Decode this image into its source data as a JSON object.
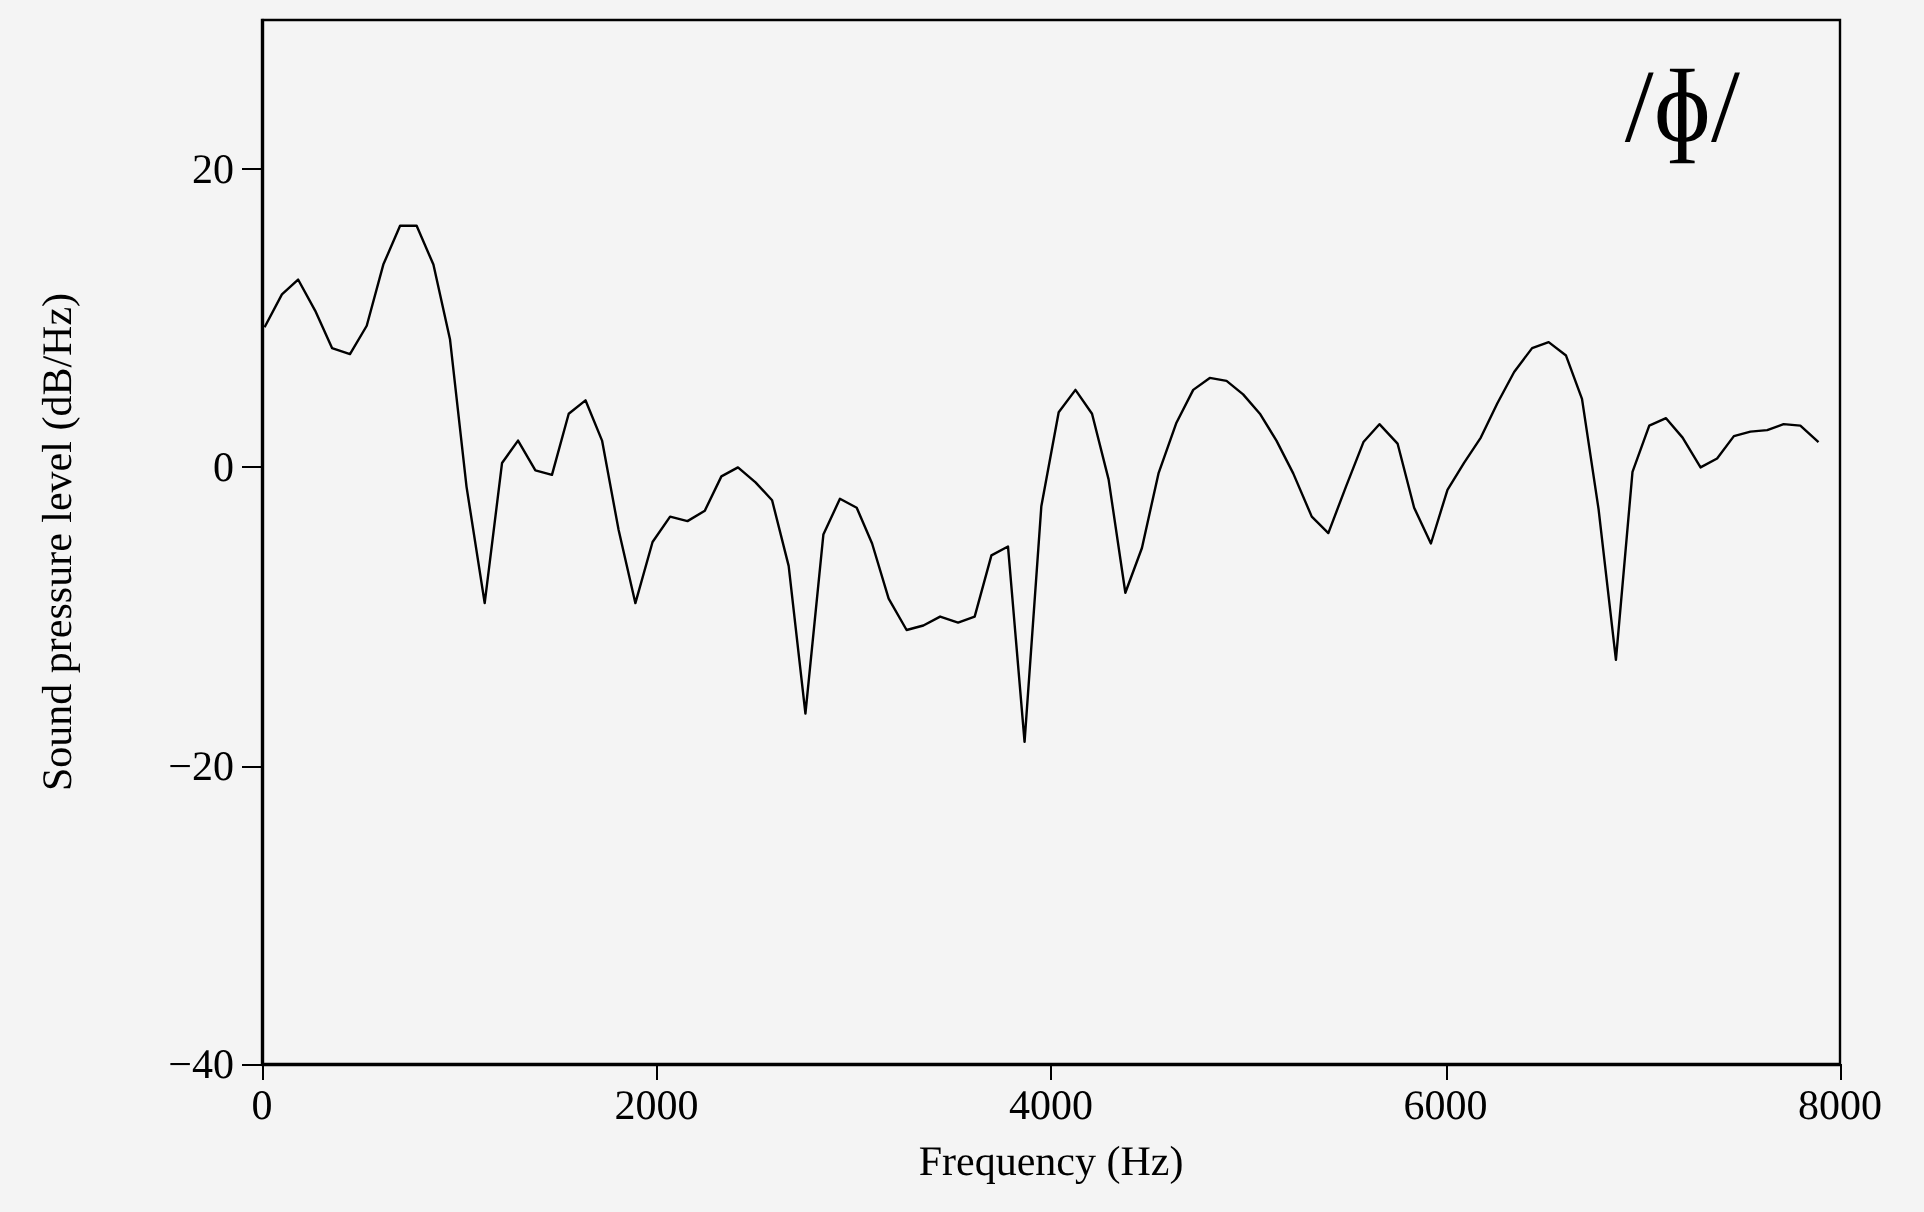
{
  "chart_data": {
    "type": "line",
    "xlabel": "Frequency (Hz)",
    "ylabel": "Sound pressure level (dB/Hz)",
    "annotations": [
      "/ɸ/"
    ],
    "x": [
      13,
      101,
      183,
      270,
      355,
      446,
      531,
      615,
      700,
      784,
      869,
      953,
      1037,
      1129,
      1217,
      1298,
      1386,
      1470,
      1555,
      1640,
      1724,
      1808,
      1893,
      1980,
      2069,
      2157,
      2245,
      2329,
      2413,
      2502,
      2586,
      2670,
      2755,
      2846,
      2930,
      3015,
      3093,
      3177,
      3268,
      3353,
      3438,
      3529,
      3613,
      3698,
      3782,
      3866,
      3951,
      4039,
      4124,
      4208,
      4292,
      4377,
      4461,
      4545,
      4636,
      4721,
      4805,
      4890,
      4974,
      5059,
      5143,
      5228,
      5322,
      5406,
      5495,
      5584,
      5665,
      5757,
      5841,
      5926,
      6010,
      6094,
      6179,
      6263,
      6348,
      6439,
      6523,
      6611,
      6692,
      6776,
      6864,
      6948,
      7033,
      7118,
      7202,
      7293,
      7377,
      7462,
      7546,
      7631,
      7714,
      7799,
      7891
    ],
    "series": [
      {
        "color": "#000000",
        "values": [
          9.4,
          11.6,
          12.6,
          10.5,
          8.0,
          7.6,
          9.5,
          13.6,
          16.2,
          16.2,
          13.6,
          8.6,
          -1.3,
          -9.1,
          0.3,
          1.8,
          -0.2,
          -0.5,
          3.6,
          4.5,
          1.8,
          -4.2,
          -9.1,
          -5.0,
          -3.3,
          -3.6,
          -2.9,
          -0.6,
          0.0,
          -1.0,
          -2.2,
          -6.6,
          -16.5,
          -4.5,
          -2.1,
          -2.7,
          -5.1,
          -8.8,
          -10.9,
          -10.6,
          -10.0,
          -10.4,
          -10.0,
          -5.9,
          -5.3,
          -18.4,
          -2.6,
          3.7,
          5.2,
          3.6,
          -0.8,
          -8.4,
          -5.4,
          -0.4,
          3.0,
          5.2,
          6.0,
          5.8,
          4.9,
          3.6,
          1.8,
          -0.4,
          -3.3,
          -4.4,
          -1.3,
          1.7,
          2.9,
          1.6,
          -2.7,
          -5.1,
          -1.5,
          0.3,
          2.0,
          4.3,
          6.4,
          8.0,
          8.4,
          7.5,
          4.6,
          -2.8,
          -12.9,
          -0.3,
          2.8,
          3.3,
          2.0,
          0.0,
          0.6,
          2.1,
          2.4,
          2.5,
          2.9,
          2.8,
          1.7
        ]
      }
    ],
    "xlim": [
      0,
      8000
    ],
    "xticks": [
      0,
      2000,
      4000,
      6000,
      8000
    ],
    "ylim": [
      -40,
      30
    ],
    "yticks": [
      {
        "value": -40,
        "label": "−40"
      },
      {
        "value": -20,
        "label": "−20"
      },
      0,
      20
    ],
    "grid": false,
    "marker": "none",
    "line_style": "solid"
  }
}
